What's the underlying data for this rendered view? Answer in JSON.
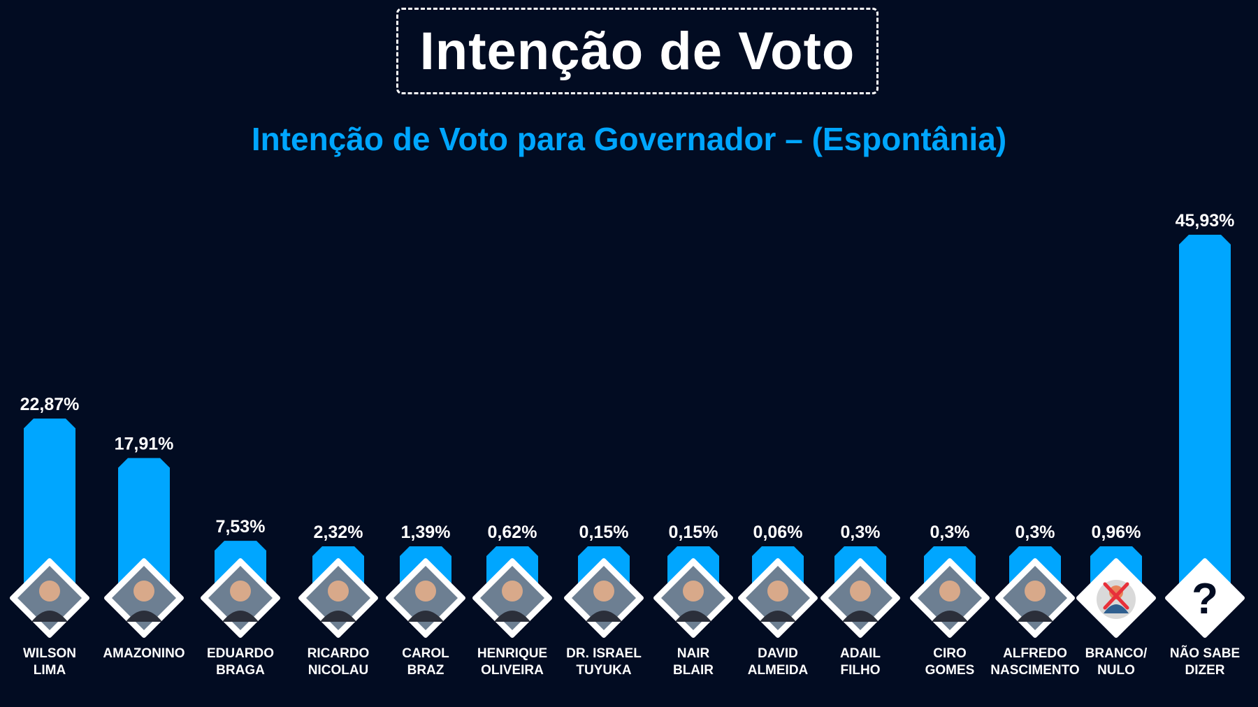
{
  "header": {
    "title": "Intenção de Voto",
    "subtitle": "Intenção de Voto para Governador – (Espontânia)"
  },
  "colors": {
    "background": "#020c22",
    "bar": "#00a6ff",
    "text": "#ffffff",
    "accent": "#00a6ff"
  },
  "chart_data": {
    "type": "bar",
    "title": "Intenção de Voto para Governador – (Espontânia)",
    "xlabel": "",
    "ylabel": "",
    "ylim": [
      0,
      50
    ],
    "grid": false,
    "categories": [
      [
        "WILSON",
        "LIMA"
      ],
      [
        "AMAZONINO"
      ],
      [
        "EDUARDO",
        "BRAGA"
      ],
      [
        "RICARDO",
        "NICOLAU"
      ],
      [
        "CAROL",
        "BRAZ"
      ],
      [
        "HENRIQUE",
        "OLIVEIRA"
      ],
      [
        "DR. ISRAEL",
        "TUYUKA"
      ],
      [
        "NAIR",
        "BLAIR"
      ],
      [
        "DAVID",
        "ALMEIDA"
      ],
      [
        "ADAIL",
        "FILHO"
      ],
      [
        "CIRO",
        "GOMES"
      ],
      [
        "ALFREDO",
        "NASCIMENTO"
      ],
      [
        "BRANCO/",
        "NULO"
      ],
      [
        "NÃO SABE",
        "DIZER"
      ]
    ],
    "values": [
      22.87,
      17.91,
      7.53,
      2.32,
      1.39,
      0.62,
      0.15,
      0.15,
      0.06,
      0.3,
      0.3,
      0.3,
      0.96,
      45.93
    ],
    "value_labels": [
      "22,87%",
      "17,91%",
      "7,53%",
      "2,32%",
      "1,39%",
      "0,62%",
      "0,15%",
      "0,15%",
      "0,06%",
      "0,3%",
      "0,3%",
      "0,3%",
      "0,96%",
      "45,93%"
    ],
    "icons": [
      "candidate-photo",
      "candidate-photo",
      "candidate-photo",
      "candidate-photo",
      "candidate-photo",
      "candidate-photo",
      "candidate-photo",
      "candidate-photo",
      "candidate-photo",
      "candidate-photo",
      "candidate-photo",
      "candidate-photo",
      "blank-null-icon",
      "question-mark-icon"
    ],
    "question_mark": "?"
  }
}
